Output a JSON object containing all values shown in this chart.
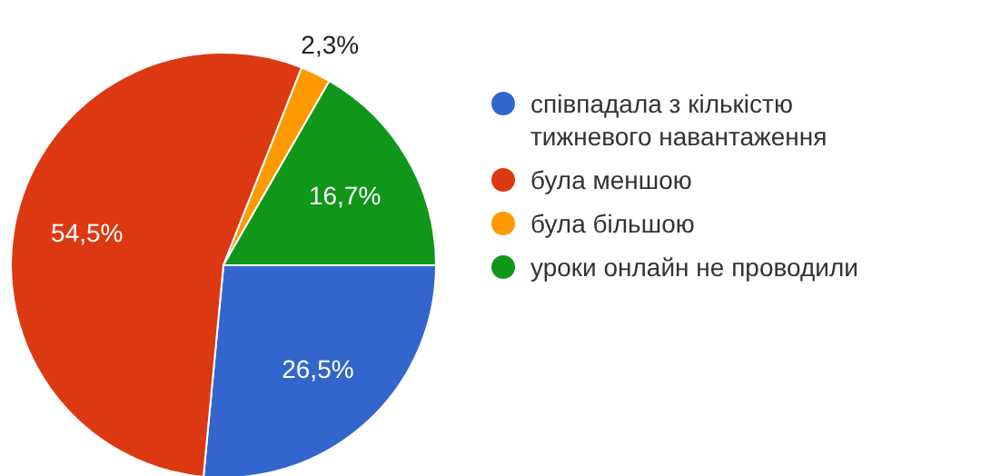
{
  "chart_data": {
    "type": "pie",
    "categories": [
      "співпадала з кількістю тижневого навантаження",
      "була меншою",
      "була більшою",
      "уроки онлайн не проводили"
    ],
    "values": [
      26.5,
      54.5,
      2.3,
      16.7
    ],
    "colors": [
      "#3366cc",
      "#dc3912",
      "#ff9900",
      "#109618"
    ],
    "value_labels": [
      "26,5%",
      "54,5%",
      "2,3%",
      "16,7%"
    ],
    "legend": "right"
  }
}
